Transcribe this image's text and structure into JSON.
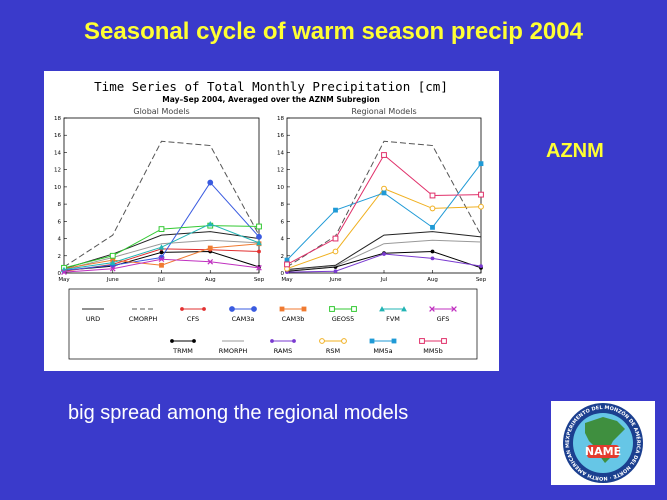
{
  "slide": {
    "title": "Seasonal cycle of warm season precip 2004",
    "region": "AZNM",
    "caption": "big spread among the regional models"
  },
  "logo": {
    "center_text": "NAME",
    "ring_text": "EXPERIMENTO DEL MONZÓN DE AMÉRICA DEL NORTE · NORTH AMERICAN MONSOON EXPERIMENT",
    "colors": {
      "ring": "#1b3f8f",
      "sea": "#66c6e6",
      "land": "#3f8f3f",
      "center": "#e33b2e"
    }
  },
  "chart_data": {
    "type": "line",
    "title": "Time Series of Total Monthly Precipitation [cm]",
    "subtitle": "May–Sep 2004, Averaged over the AZNM Subregion",
    "x": [
      "May",
      "June",
      "Jul",
      "Aug",
      "Sep"
    ],
    "ylim": [
      0,
      18
    ],
    "yticks": [
      0,
      2,
      4,
      6,
      8,
      10,
      12,
      14,
      16,
      18
    ],
    "grid": false,
    "legend_position": "bottom",
    "panels": [
      {
        "name": "Global Models",
        "series": [
          {
            "name": "URD",
            "color": "#222222",
            "dash": "solid",
            "marker": "none",
            "values": [
              0.5,
              2.2,
              4.4,
              4.8,
              4.0
            ]
          },
          {
            "name": "CMORPH",
            "color": "#555555",
            "dash": "dashed",
            "marker": "none",
            "values": [
              0.7,
              4.4,
              15.3,
              14.8,
              4.4
            ]
          },
          {
            "name": "TRMM",
            "color": "#000000",
            "dash": "solid",
            "marker": "dot",
            "values": [
              0.3,
              0.8,
              2.4,
              2.5,
              0.7
            ]
          },
          {
            "name": "RMORPH",
            "color": "#999999",
            "dash": "solid",
            "marker": "none",
            "values": [
              0.4,
              1.8,
              3.4,
              3.8,
              3.5
            ]
          },
          {
            "name": "CFS",
            "color": "#e23030",
            "dash": "solid",
            "marker": "dot",
            "values": [
              0.2,
              1.0,
              2.8,
              2.7,
              2.5
            ]
          },
          {
            "name": "CAM3a",
            "color": "#3a5be0",
            "dash": "solid",
            "marker": "circle",
            "values": [
              0.3,
              0.9,
              1.8,
              10.5,
              4.2
            ]
          },
          {
            "name": "CAM3b",
            "color": "#f07a30",
            "dash": "solid",
            "marker": "square",
            "values": [
              0.5,
              1.5,
              0.9,
              2.9,
              3.4
            ]
          },
          {
            "name": "GEOS5",
            "color": "#33c933",
            "dash": "solid",
            "marker": "square-open",
            "values": [
              0.6,
              2.0,
              5.1,
              5.5,
              5.4
            ]
          },
          {
            "name": "FVM",
            "color": "#22b4b4",
            "dash": "solid",
            "marker": "triangle",
            "values": [
              0.4,
              1.2,
              3.0,
              5.7,
              3.5
            ]
          },
          {
            "name": "GFS",
            "color": "#c030c0",
            "dash": "solid",
            "marker": "cross",
            "values": [
              0.1,
              0.5,
              1.6,
              1.3,
              0.6
            ]
          }
        ]
      },
      {
        "name": "Regional Models",
        "series": [
          {
            "name": "URD",
            "color": "#222222",
            "dash": "solid",
            "marker": "none",
            "values": [
              0.4,
              0.9,
              4.4,
              4.8,
              4.2
            ]
          },
          {
            "name": "CMORPH",
            "color": "#555555",
            "dash": "dashed",
            "marker": "none",
            "values": [
              0.7,
              4.3,
              15.3,
              14.8,
              4.4
            ]
          },
          {
            "name": "TRMM",
            "color": "#000000",
            "dash": "solid",
            "marker": "dot",
            "values": [
              0.2,
              0.7,
              2.3,
              2.5,
              0.6
            ]
          },
          {
            "name": "RMORPH",
            "color": "#999999",
            "dash": "solid",
            "marker": "none",
            "values": [
              0.3,
              0.8,
              3.4,
              3.8,
              3.6
            ]
          },
          {
            "name": "RAMS",
            "color": "#7a3ad0",
            "dash": "solid",
            "marker": "dot",
            "values": [
              0.1,
              0.2,
              2.2,
              1.7,
              0.8
            ]
          },
          {
            "name": "RSM",
            "color": "#f0b020",
            "dash": "solid",
            "marker": "circle-open",
            "values": [
              0.5,
              2.5,
              9.8,
              7.5,
              7.7
            ]
          },
          {
            "name": "MM5a",
            "color": "#1f9ad6",
            "dash": "solid",
            "marker": "square",
            "values": [
              1.5,
              7.3,
              9.3,
              5.3,
              12.7
            ]
          },
          {
            "name": "MM5b",
            "color": "#e0306a",
            "dash": "solid",
            "marker": "square-open",
            "values": [
              1.0,
              4.0,
              13.7,
              9.0,
              9.1
            ]
          }
        ]
      }
    ],
    "legend": [
      {
        "name": "URD",
        "color": "#222222",
        "dash": "solid",
        "marker": "none"
      },
      {
        "name": "CMORPH",
        "color": "#555555",
        "dash": "dashed",
        "marker": "none"
      },
      {
        "name": "CFS",
        "color": "#e23030",
        "dash": "solid",
        "marker": "dot"
      },
      {
        "name": "CAM3a",
        "color": "#3a5be0",
        "dash": "solid",
        "marker": "circle"
      },
      {
        "name": "CAM3b",
        "color": "#f07a30",
        "dash": "solid",
        "marker": "square"
      },
      {
        "name": "GEOS5",
        "color": "#33c933",
        "dash": "solid",
        "marker": "square-open"
      },
      {
        "name": "FVM",
        "color": "#22b4b4",
        "dash": "solid",
        "marker": "triangle"
      },
      {
        "name": "GFS",
        "color": "#c030c0",
        "dash": "solid",
        "marker": "cross"
      },
      {
        "name": "TRMM",
        "color": "#000000",
        "dash": "solid",
        "marker": "dot"
      },
      {
        "name": "RMORPH",
        "color": "#999999",
        "dash": "solid",
        "marker": "none"
      },
      {
        "name": "RAMS",
        "color": "#7a3ad0",
        "dash": "solid",
        "marker": "dot"
      },
      {
        "name": "RSM",
        "color": "#f0b020",
        "dash": "solid",
        "marker": "circle-open"
      },
      {
        "name": "MM5a",
        "color": "#1f9ad6",
        "dash": "solid",
        "marker": "square"
      },
      {
        "name": "MM5b",
        "color": "#e0306a",
        "dash": "solid",
        "marker": "square-open"
      }
    ]
  }
}
